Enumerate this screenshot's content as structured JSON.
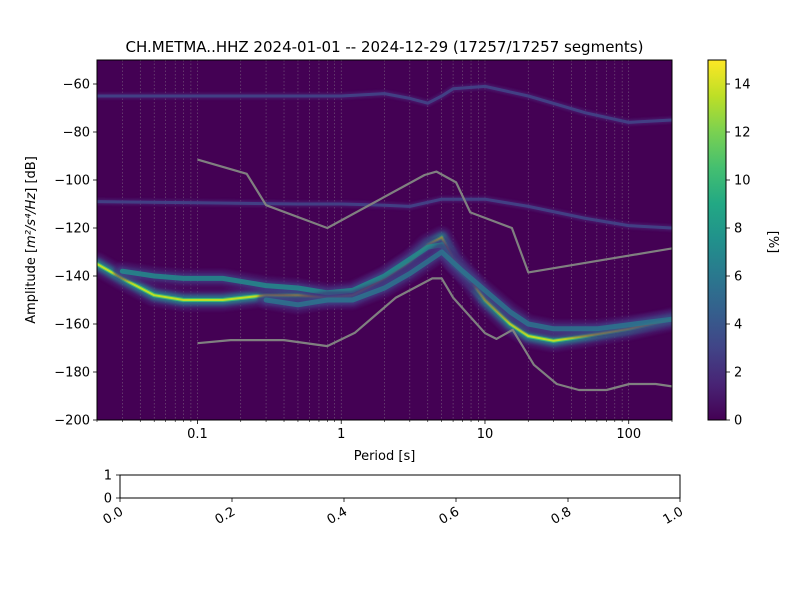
{
  "title": "CH.METMA..HHZ   2024-01-01 -- 2024-12-29  (17257/17257 segments)",
  "chart_data": [
    {
      "type": "heatmap",
      "title": "CH.METMA..HHZ   2024-01-01 -- 2024-12-29  (17257/17257 segments)",
      "xlabel": "Period [s]",
      "ylabel": "Amplitude [m²/s⁴/Hz] [dB]",
      "ylabel_main": "Amplitude [",
      "ylabel_unit": "m²/s⁴/Hz",
      "ylabel_tail": "] [dB]",
      "xscale": "log",
      "xlim": [
        0.02,
        200
      ],
      "ylim": [
        -200,
        -50
      ],
      "x_ticks": [
        {
          "value": 0.1,
          "label": "0.1"
        },
        {
          "value": 1,
          "label": "1"
        },
        {
          "value": 10,
          "label": "10"
        },
        {
          "value": 100,
          "label": "100"
        }
      ],
      "y_ticks": [
        {
          "value": -60,
          "label": "−60"
        },
        {
          "value": -80,
          "label": "−80"
        },
        {
          "value": -100,
          "label": "−100"
        },
        {
          "value": -120,
          "label": "−120"
        },
        {
          "value": -140,
          "label": "−140"
        },
        {
          "value": -160,
          "label": "−160"
        },
        {
          "value": -180,
          "label": "−180"
        },
        {
          "value": -200,
          "label": "−200"
        }
      ],
      "grid": "x-minor dotted",
      "colorbar": {
        "label": "[%]",
        "range": [
          0,
          15
        ],
        "ticks": [
          {
            "value": 0,
            "label": "0"
          },
          {
            "value": 2,
            "label": "2"
          },
          {
            "value": 4,
            "label": "4"
          },
          {
            "value": 6,
            "label": "6"
          },
          {
            "value": 8,
            "label": "8"
          },
          {
            "value": 10,
            "label": "10"
          },
          {
            "value": 12,
            "label": "12"
          },
          {
            "value": 14,
            "label": "14"
          }
        ],
        "colormap": "viridis"
      },
      "background_color": "#440154",
      "model_line_color": "#808080",
      "density_bands": [
        {
          "name": "main",
          "points": [
            [
              0.02,
              -135
            ],
            [
              0.03,
              -141
            ],
            [
              0.05,
              -148
            ],
            [
              0.08,
              -150
            ],
            [
              0.15,
              -150
            ],
            [
              0.3,
              -148
            ],
            [
              0.5,
              -148
            ],
            [
              0.8,
              -149
            ],
            [
              1.2,
              -148
            ],
            [
              2,
              -141
            ],
            [
              3,
              -134
            ],
            [
              4,
              -127
            ],
            [
              5,
              -124
            ],
            [
              6,
              -133
            ],
            [
              8,
              -142
            ],
            [
              10,
              -150
            ],
            [
              15,
              -160
            ],
            [
              20,
              -165
            ],
            [
              30,
              -167
            ],
            [
              50,
              -165
            ],
            [
              100,
              -162
            ],
            [
              200,
              -158
            ]
          ],
          "intensity": 13
        },
        {
          "name": "upper",
          "points": [
            [
              0.03,
              -138
            ],
            [
              0.05,
              -140
            ],
            [
              0.08,
              -141
            ],
            [
              0.15,
              -141
            ],
            [
              0.3,
              -144
            ],
            [
              0.5,
              -145
            ],
            [
              0.8,
              -147
            ],
            [
              1.2,
              -146
            ],
            [
              2,
              -140
            ],
            [
              3,
              -133
            ],
            [
              4,
              -128
            ],
            [
              5,
              -127
            ],
            [
              6,
              -135
            ],
            [
              8,
              -142
            ]
          ],
          "intensity": 7
        },
        {
          "name": "lower",
          "points": [
            [
              0.3,
              -150
            ],
            [
              0.5,
              -152
            ],
            [
              0.8,
              -150
            ],
            [
              1.2,
              -150
            ],
            [
              2,
              -145
            ],
            [
              3,
              -139
            ],
            [
              5,
              -130
            ],
            [
              7,
              -138
            ],
            [
              10,
              -146
            ],
            [
              15,
              -155
            ],
            [
              20,
              -160
            ],
            [
              30,
              -162
            ],
            [
              60,
              -162
            ],
            [
              200,
              -158
            ]
          ],
          "intensity": 6
        },
        {
          "name": "trace-110",
          "points": [
            [
              0.02,
              -109
            ],
            [
              0.1,
              -109.5
            ],
            [
              0.5,
              -110
            ],
            [
              1,
              -110
            ],
            [
              2,
              -110.5
            ],
            [
              3,
              -111
            ],
            [
              5,
              -108
            ],
            [
              10,
              -108
            ],
            [
              20,
              -111
            ],
            [
              50,
              -116
            ],
            [
              100,
              -119
            ],
            [
              200,
              -120
            ]
          ],
          "intensity": 3
        },
        {
          "name": "trace-65",
          "points": [
            [
              0.02,
              -65
            ],
            [
              0.1,
              -65
            ],
            [
              0.5,
              -65
            ],
            [
              1,
              -65
            ],
            [
              2,
              -64
            ],
            [
              3,
              -66
            ],
            [
              4,
              -68
            ],
            [
              5,
              -65
            ],
            [
              6,
              -62
            ],
            [
              10,
              -61
            ],
            [
              20,
              -65
            ],
            [
              50,
              -72
            ],
            [
              100,
              -76
            ],
            [
              200,
              -75
            ]
          ],
          "intensity": 3
        }
      ],
      "model_lines": [
        {
          "points": [
            [
              0.1,
              -91.5
            ],
            [
              0.22,
              -97.4
            ],
            [
              0.3,
              -110.5
            ],
            [
              0.8,
              -120
            ],
            [
              3.8,
              -97.9
            ],
            [
              4.6,
              -96.5
            ],
            [
              6.3,
              -101
            ],
            [
              7.9,
              -113.5
            ],
            [
              15.4,
              -120
            ],
            [
              20,
              -138.5
            ],
            [
              200,
              -128.5
            ]
          ]
        },
        {
          "points": [
            [
              0.1,
              -168
            ],
            [
              0.17,
              -166.7
            ],
            [
              0.4,
              -166.7
            ],
            [
              0.8,
              -169.2
            ],
            [
              1.24,
              -163.7
            ],
            [
              2.4,
              -149
            ],
            [
              4.3,
              -141
            ],
            [
              5,
              -141
            ],
            [
              6,
              -149
            ],
            [
              10,
              -163.8
            ],
            [
              12,
              -166.2
            ],
            [
              15.6,
              -162.4
            ],
            [
              21.9,
              -177
            ],
            [
              31.6,
              -185
            ],
            [
              45,
              -187.5
            ],
            [
              70,
              -187.5
            ],
            [
              101,
              -185
            ],
            [
              154,
              -185
            ],
            [
              200,
              -186
            ]
          ]
        }
      ]
    },
    {
      "type": "line",
      "title": "",
      "xlabel": "",
      "ylabel": "",
      "xlim": [
        0,
        1
      ],
      "ylim": [
        0,
        1
      ],
      "x_ticks": [
        {
          "value": 0.0,
          "label": "0.0"
        },
        {
          "value": 0.2,
          "label": "0.2"
        },
        {
          "value": 0.4,
          "label": "0.4"
        },
        {
          "value": 0.6,
          "label": "0.6"
        },
        {
          "value": 0.8,
          "label": "0.8"
        },
        {
          "value": 1.0,
          "label": "1.0"
        }
      ],
      "y_ticks": [
        {
          "value": 0,
          "label": "0"
        },
        {
          "value": 1,
          "label": "1"
        }
      ],
      "series": []
    }
  ]
}
